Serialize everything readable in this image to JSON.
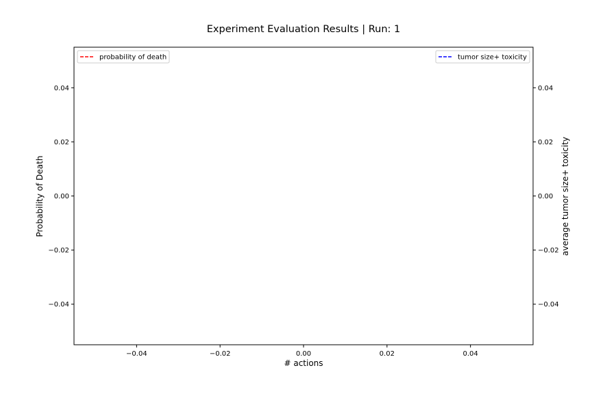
{
  "chart_data": {
    "type": "line",
    "title": "Experiment Evaluation Results | Run: 1",
    "xlabel": "# actions",
    "ylabel_left": "Probability of Death",
    "ylabel_right": "average tumor size+ toxicity",
    "xlim": [
      -0.055,
      0.055
    ],
    "ylim_left": [
      -0.055,
      0.055
    ],
    "ylim_right": [
      -0.055,
      0.055
    ],
    "x_ticks": [
      {
        "value": -0.04,
        "label": "−0.04"
      },
      {
        "value": -0.02,
        "label": "−0.02"
      },
      {
        "value": 0.0,
        "label": "0.00"
      },
      {
        "value": 0.02,
        "label": "0.02"
      },
      {
        "value": 0.04,
        "label": "0.04"
      }
    ],
    "y_ticks_left": [
      {
        "value": 0.04,
        "label": "0.04"
      },
      {
        "value": 0.02,
        "label": "0.02"
      },
      {
        "value": 0.0,
        "label": "0.00"
      },
      {
        "value": -0.02,
        "label": "−0.02"
      },
      {
        "value": -0.04,
        "label": "−0.04"
      }
    ],
    "y_ticks_right": [
      {
        "value": 0.04,
        "label": "0.04"
      },
      {
        "value": 0.02,
        "label": "0.02"
      },
      {
        "value": 0.0,
        "label": "0.00"
      },
      {
        "value": -0.02,
        "label": "−0.02"
      },
      {
        "value": -0.04,
        "label": "−0.04"
      }
    ],
    "grid": false,
    "series": [
      {
        "name": "probability of death",
        "axis": "left",
        "color": "#ff0000",
        "line_style": "dashed",
        "x": [],
        "y": [],
        "legend_position": "upper-left"
      },
      {
        "name": "tumor size+ toxicity",
        "axis": "right",
        "color": "#0000ff",
        "line_style": "dashed",
        "x": [],
        "y": [],
        "legend_position": "upper-right"
      }
    ]
  }
}
